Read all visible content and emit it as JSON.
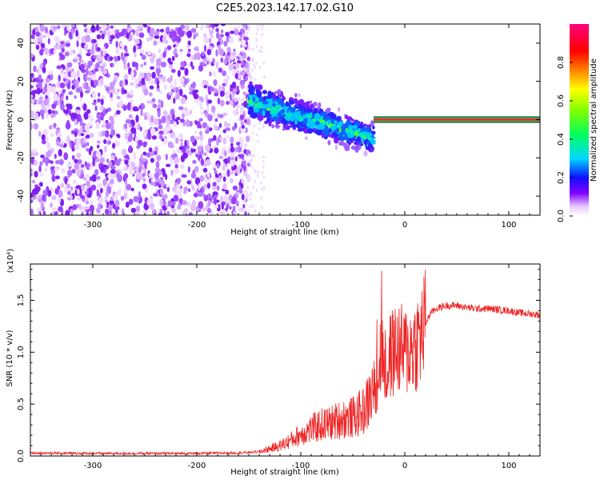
{
  "title": "C2E5.2023.142.17.02.G10",
  "chart_data": [
    {
      "type": "heatmap",
      "xlabel": "Height of straight line (km)",
      "ylabel": "Frequency (Hz)",
      "xlim": [
        -360,
        130
      ],
      "ylim": [
        -50,
        50
      ],
      "x_ticks": [
        -300,
        -200,
        -100,
        0,
        100
      ],
      "y_ticks": [
        -40,
        -20,
        0,
        20,
        40
      ],
      "colorbar": {
        "label": "Normalized spectral amplitude",
        "range": [
          0,
          1
        ],
        "ticks": [
          0.0,
          0.2,
          0.4,
          0.6,
          0.8
        ]
      },
      "regions": [
        {
          "x": [
            -360,
            -150
          ],
          "freq_spread": 50,
          "amplitude": 0.1
        },
        {
          "x": [
            -150,
            -30
          ],
          "freq_center": [
            10,
            -10
          ],
          "freq_spread": [
            14,
            10
          ],
          "amplitude": 0.4
        },
        {
          "x": [
            -30,
            130
          ],
          "freq_center": 0,
          "freq_spread": 1,
          "amplitude": 0.9
        }
      ],
      "grid": false
    },
    {
      "type": "line",
      "xlabel": "Height of straight line (km)",
      "ylabel": "SNR (10 * v/v)",
      "y_multiplier": "(x10⁴)",
      "xlim": [
        -360,
        130
      ],
      "ylim": [
        0,
        18500
      ],
      "x_ticks": [
        -300,
        -200,
        -100,
        0,
        100
      ],
      "y_ticks": [
        0,
        5000,
        10000,
        15000
      ],
      "y_tick_labels": [
        "0.0",
        "0.5",
        "1.0",
        "1.5"
      ],
      "series": [
        {
          "color": "#ee2222",
          "x": [
            -360,
            -300,
            -250,
            -200,
            -160,
            -140,
            -130,
            -120,
            -110,
            -100,
            -90,
            -80,
            -70,
            -60,
            -50,
            -40,
            -35,
            -30,
            -27,
            -25,
            -22,
            -20,
            -15,
            -10,
            -5,
            0,
            5,
            10,
            15,
            20,
            25,
            30,
            40,
            50,
            60,
            70,
            80,
            90,
            100,
            110,
            120,
            130
          ],
          "values": [
            300,
            250,
            250,
            250,
            300,
            400,
            700,
            1000,
            1500,
            2100,
            2600,
            3000,
            3200,
            3600,
            3700,
            4300,
            5200,
            6500,
            7500,
            9000,
            10500,
            8500,
            9500,
            10200,
            10300,
            10000,
            10300,
            10800,
            11500,
            12800,
            13800,
            14200,
            14500,
            14500,
            14300,
            14200,
            14200,
            14100,
            14000,
            13800,
            13700,
            13600
          ]
        }
      ],
      "grid": false
    }
  ],
  "colors": {
    "line": "#ee2222",
    "background": "#ffffff",
    "axis": "#000000"
  }
}
